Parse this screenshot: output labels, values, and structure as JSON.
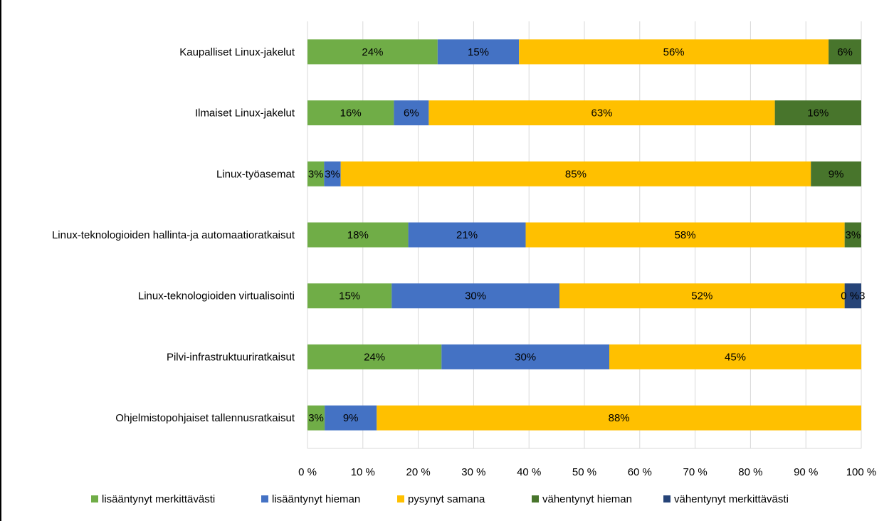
{
  "chart_data": {
    "type": "bar",
    "orientation": "horizontal",
    "stacked": "percent",
    "categories": [
      "Kaupalliset Linux-jakelut",
      "Ilmaiset Linux-jakelut",
      "Linux-työasemat",
      "Linux-teknologioiden hallinta-ja automaatioratkaisut",
      "Linux-teknologioiden virtualisointi",
      "Pilvi-infrastruktuuriratkaisut",
      "Ohjelmistopohjaiset tallennusratkaisut"
    ],
    "series": [
      {
        "name": "lisääntynyt merkittävästi",
        "color": "#70AD47",
        "values": [
          23.5,
          15.6,
          3.0,
          18.2,
          15.2,
          24.2,
          3.1
        ],
        "labels": [
          "24%",
          "16%",
          "3%",
          "18%",
          "15%",
          "24%",
          "3%"
        ]
      },
      {
        "name": "lisääntynyt hieman",
        "color": "#4472C4",
        "values": [
          14.7,
          6.3,
          3.0,
          21.2,
          30.3,
          30.3,
          9.4
        ],
        "labels": [
          "15%",
          "6%",
          "3%",
          "21%",
          "30%",
          "30%",
          "9%"
        ]
      },
      {
        "name": "pysynyt samana",
        "color": "#FFC000",
        "values": [
          55.9,
          62.5,
          84.9,
          57.6,
          51.5,
          45.5,
          87.5
        ],
        "labels": [
          "56%",
          "63%",
          "85%",
          "58%",
          "52%",
          "45%",
          "88%"
        ]
      },
      {
        "name": "vähentynyt hieman",
        "color": "#48752C",
        "values": [
          5.9,
          15.6,
          9.1,
          3.0,
          0,
          0,
          0
        ],
        "labels": [
          "6%",
          "16%",
          "9%",
          "3%",
          "",
          "",
          ""
        ]
      },
      {
        "name": "vähentynyt merkittävästi",
        "color": "#264478",
        "values": [
          0,
          0,
          0,
          0,
          3.0,
          0,
          0
        ],
        "labels": [
          "",
          "",
          "",
          "",
          "0 %3",
          "",
          ""
        ]
      }
    ],
    "x_ticks": [
      "0 %",
      "10 %",
      "20 %",
      "30 %",
      "40 %",
      "50 %",
      "60 %",
      "70 %",
      "80 %",
      "90 %",
      "100 %"
    ],
    "xlim": [
      0,
      100
    ],
    "grid": true,
    "legend": "bottom"
  }
}
